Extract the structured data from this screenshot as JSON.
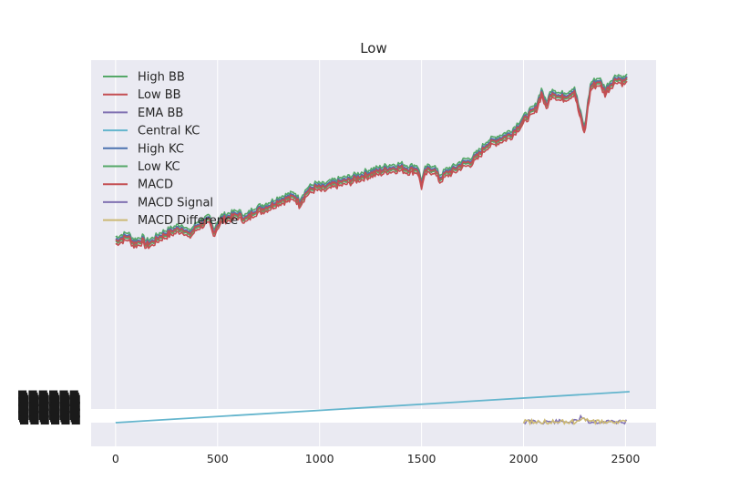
{
  "chart_data": {
    "type": "line",
    "title": "Low",
    "xlabel": "",
    "ylabel": "",
    "xlim": [
      -120,
      2650
    ],
    "xticks": [
      0,
      500,
      1000,
      1500,
      2000,
      2500
    ],
    "xtick_labels": [
      "0",
      "500",
      "1000",
      "1500",
      "2000",
      "2500"
    ],
    "price_panel": {
      "ylim": [
        0,
        100
      ],
      "series": [
        {
          "name": "High BB",
          "color": "#55A868",
          "offset": 1.6,
          "x": [
            0,
            30,
            60,
            90,
            110,
            130,
            150,
            180,
            220,
            260,
            300,
            330,
            360,
            400,
            430,
            460,
            480,
            500,
            520,
            560,
            600,
            640,
            680,
            720,
            760,
            800,
            840,
            880,
            900,
            940,
            980,
            1020,
            1060,
            1100,
            1150,
            1200,
            1250,
            1300,
            1340,
            1400,
            1440,
            1480,
            1500,
            1520,
            1560,
            1590,
            1620,
            1660,
            1700,
            1740,
            1780,
            1820,
            1860,
            1900,
            1940,
            1980,
            2020,
            2060,
            2090,
            2110,
            2140,
            2180,
            2220,
            2250,
            2270,
            2300,
            2310,
            2330,
            2370,
            2400,
            2430,
            2460,
            2490,
            2510
          ],
          "y": [
            28.5,
            29.5,
            30.5,
            27.5,
            28.0,
            29.0,
            27.0,
            28.0,
            30.5,
            32.0,
            33.5,
            34.0,
            31.0,
            35.0,
            36.5,
            37.5,
            32.0,
            35.5,
            38.0,
            39.0,
            40.0,
            38.0,
            41.5,
            42.5,
            44.0,
            46.0,
            47.0,
            48.0,
            45.0,
            50.0,
            52.0,
            51.5,
            53.0,
            54.0,
            55.0,
            56.5,
            58.0,
            59.0,
            60.0,
            60.5,
            59.5,
            60.0,
            53.0,
            59.0,
            60.0,
            55.5,
            58.0,
            59.5,
            62.0,
            63.0,
            66.0,
            70.5,
            72.0,
            73.5,
            75.0,
            79.0,
            83.0,
            86.0,
            93.5,
            87.0,
            93.5,
            91.0,
            92.0,
            94.0,
            86.0,
            76.0,
            84.0,
            96.0,
            98.0,
            93.5,
            97.0,
            99.5,
            98.0,
            99.0
          ]
        },
        {
          "name": "Low BB",
          "color": "#C44E52",
          "offset": -1.6,
          "x": null,
          "y": null
        },
        {
          "name": "EMA BB",
          "color": "#8172B2",
          "offset": 0
        },
        {
          "name": "Central KC",
          "color": "#64B5CD",
          "offset": 0
        },
        {
          "name": "High KC",
          "color": "#4C72B0",
          "offset": 0.6
        },
        {
          "name": "Low KC",
          "color": "#55A868",
          "offset": -0.6
        },
        {
          "name": "MACD",
          "color": "#C44E52",
          "offset": 0
        }
      ]
    },
    "indicator_panel": {
      "series": [
        {
          "name": "Central KC (trend)",
          "color": "#64B5CD",
          "x": [
            0,
            2520
          ],
          "y": [
            0,
            100
          ]
        },
        {
          "name": "MACD Signal",
          "color": "#8172B2",
          "x_start": 2000,
          "x_end": 2510
        },
        {
          "name": "MACD Difference",
          "color": "#CCB974",
          "x_start": 2000,
          "x_end": 2510
        }
      ]
    },
    "legend": {
      "location": "upper-left",
      "entries": [
        {
          "label": "High BB",
          "color": "#55A868"
        },
        {
          "label": "Low BB",
          "color": "#C44E52"
        },
        {
          "label": "EMA BB",
          "color": "#8172B2"
        },
        {
          "label": "Central KC",
          "color": "#64B5CD"
        },
        {
          "label": "High KC",
          "color": "#4C72B0"
        },
        {
          "label": "Low KC",
          "color": "#55A868"
        },
        {
          "label": "MACD",
          "color": "#C44E52"
        },
        {
          "label": "MACD Signal",
          "color": "#8172B2"
        },
        {
          "label": "MACD Difference",
          "color": "#CCB974"
        }
      ]
    },
    "overflowing_ytick_labels": "Sm\u001f\u001f\u001f"
  },
  "colors": {
    "axes_bg": "#EAEAF2",
    "grid": "#FFFFFF",
    "text": "#262626"
  }
}
